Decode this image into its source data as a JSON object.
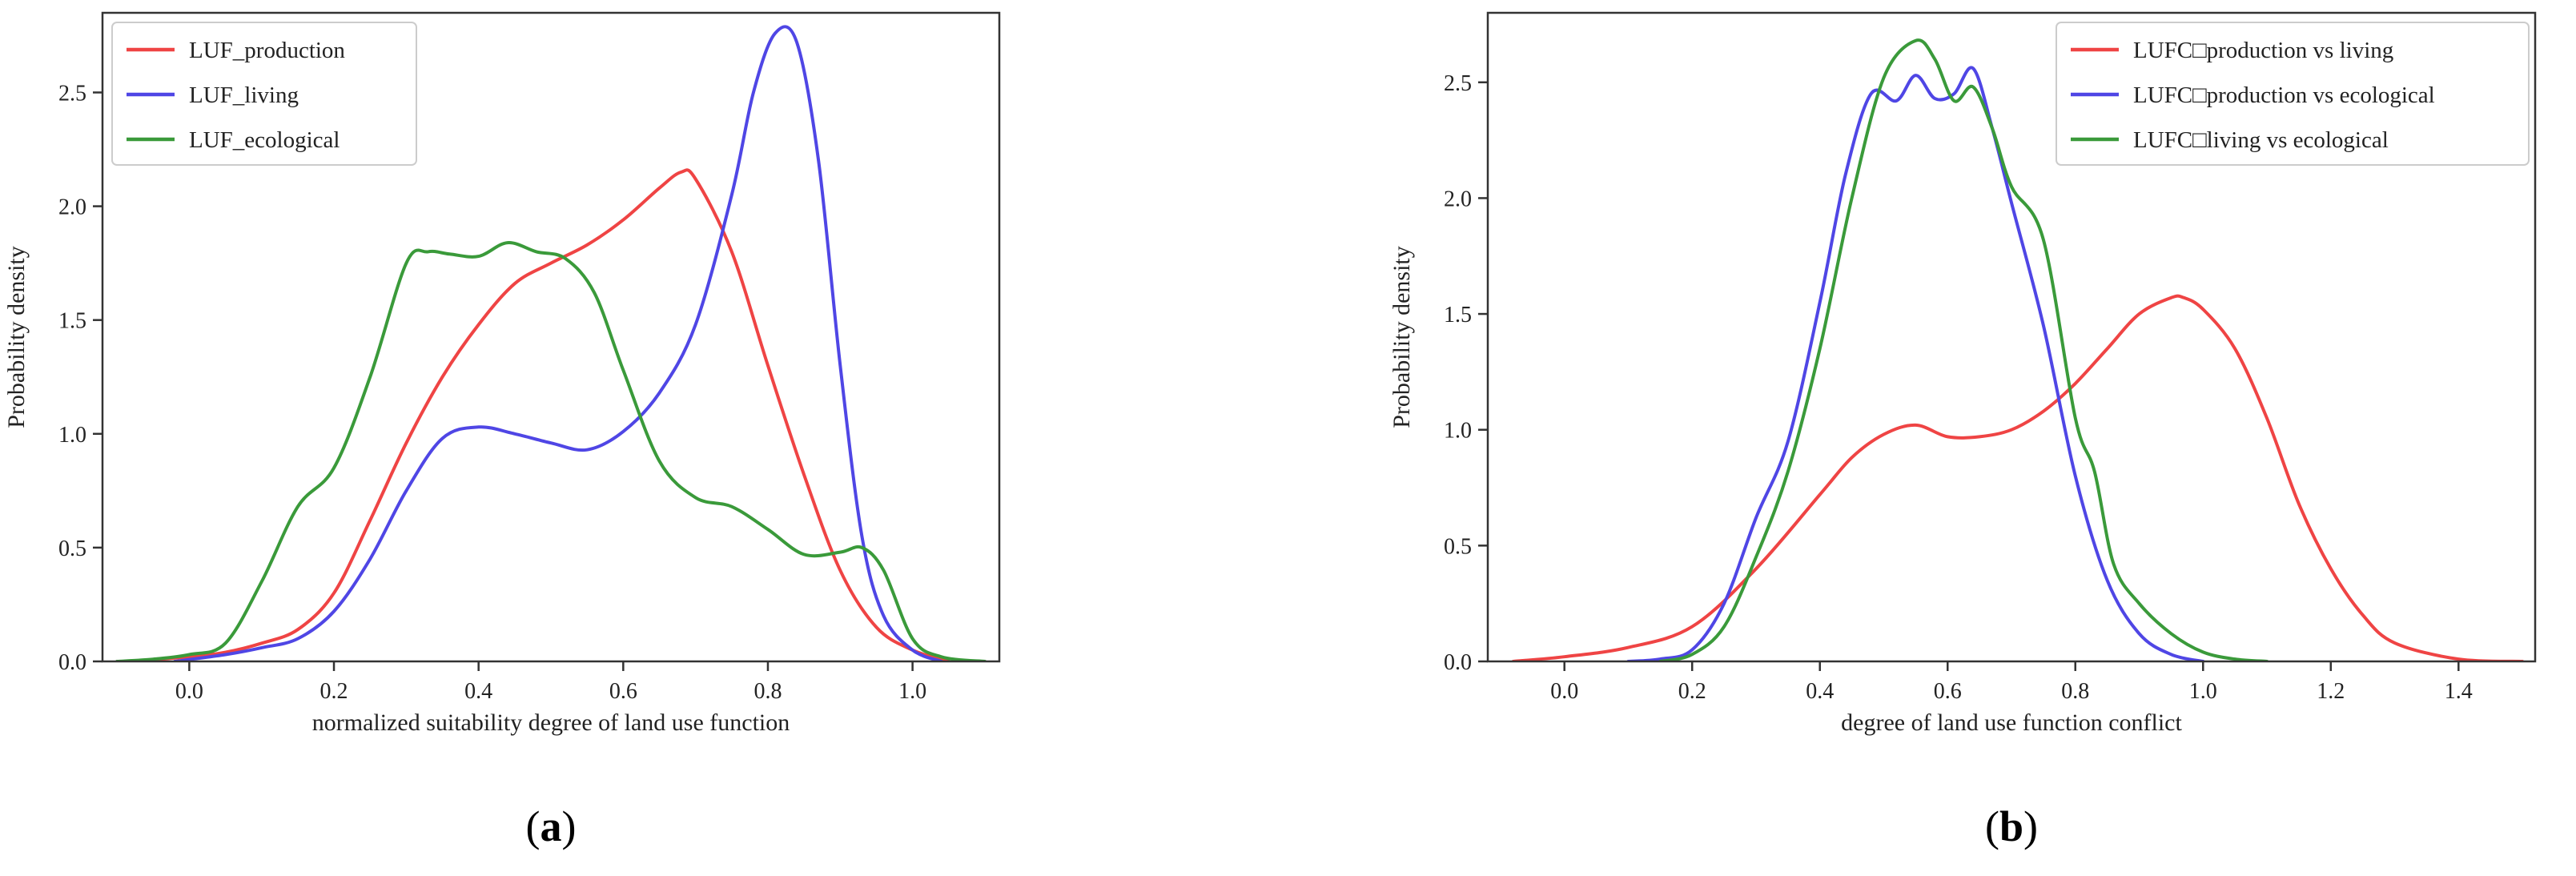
{
  "chart_data": [
    {
      "type": "line",
      "panel_label_open": "(",
      "panel_label_letter": "a",
      "panel_label_close": ")",
      "xlabel": "normalized  suitability degree of land use function",
      "ylabel": "Probability density",
      "xlim": [
        -0.12,
        1.12
      ],
      "ylim": [
        0,
        2.85
      ],
      "xticks": [
        0.0,
        0.2,
        0.4,
        0.6,
        0.8,
        1.0
      ],
      "xtick_labels": [
        "0.0",
        "0.2",
        "0.4",
        "0.6",
        "0.8",
        "1.0"
      ],
      "yticks": [
        0.0,
        0.5,
        1.0,
        1.5,
        2.0,
        2.5
      ],
      "ytick_labels": [
        "0.0",
        "0.5",
        "1.0",
        "1.5",
        "2.0",
        "2.5"
      ],
      "legend_position": "top-left",
      "series": [
        {
          "name": "LUF_production",
          "color": "#ef4444",
          "x": [
            -0.08,
            0.0,
            0.05,
            0.1,
            0.15,
            0.2,
            0.25,
            0.3,
            0.35,
            0.4,
            0.45,
            0.5,
            0.55,
            0.6,
            0.65,
            0.68,
            0.7,
            0.75,
            0.8,
            0.85,
            0.9,
            0.95,
            1.0,
            1.05
          ],
          "y": [
            0.0,
            0.02,
            0.04,
            0.08,
            0.14,
            0.3,
            0.62,
            0.96,
            1.25,
            1.48,
            1.66,
            1.75,
            1.83,
            1.94,
            2.08,
            2.15,
            2.12,
            1.8,
            1.3,
            0.82,
            0.4,
            0.15,
            0.05,
            0.0
          ]
        },
        {
          "name": "LUF_living",
          "color": "#4f46e5",
          "x": [
            -0.02,
            0.05,
            0.1,
            0.15,
            0.2,
            0.25,
            0.3,
            0.35,
            0.4,
            0.45,
            0.5,
            0.55,
            0.6,
            0.65,
            0.7,
            0.75,
            0.78,
            0.81,
            0.84,
            0.87,
            0.9,
            0.93,
            0.96,
            1.0,
            1.04
          ],
          "y": [
            0.0,
            0.03,
            0.06,
            0.1,
            0.22,
            0.45,
            0.75,
            0.98,
            1.03,
            1.0,
            0.96,
            0.93,
            1.01,
            1.18,
            1.48,
            2.05,
            2.5,
            2.76,
            2.72,
            2.2,
            1.3,
            0.55,
            0.2,
            0.05,
            0.0
          ]
        },
        {
          "name": "LUF_ecological",
          "color": "#3a9a3a",
          "x": [
            -0.1,
            -0.05,
            0.0,
            0.05,
            0.1,
            0.15,
            0.2,
            0.25,
            0.3,
            0.33,
            0.36,
            0.4,
            0.44,
            0.48,
            0.52,
            0.56,
            0.6,
            0.65,
            0.7,
            0.75,
            0.8,
            0.85,
            0.9,
            0.93,
            0.96,
            1.0,
            1.04,
            1.1
          ],
          "y": [
            0.0,
            0.01,
            0.03,
            0.08,
            0.35,
            0.68,
            0.85,
            1.25,
            1.75,
            1.8,
            1.79,
            1.78,
            1.84,
            1.8,
            1.77,
            1.62,
            1.28,
            0.88,
            0.72,
            0.68,
            0.58,
            0.47,
            0.48,
            0.5,
            0.4,
            0.1,
            0.02,
            0.0
          ]
        }
      ]
    },
    {
      "type": "line",
      "panel_label_open": "(",
      "panel_label_letter": "b",
      "panel_label_close": ")",
      "xlabel": "degree of land use function conflict",
      "ylabel": "Probability density",
      "xlim": [
        -0.12,
        1.52
      ],
      "ylim": [
        0,
        2.8
      ],
      "xticks": [
        0.0,
        0.2,
        0.4,
        0.6,
        0.8,
        1.0,
        1.2,
        1.4
      ],
      "xtick_labels": [
        "0.0",
        "0.2",
        "0.4",
        "0.6",
        "0.8",
        "1.0",
        "1.2",
        "1.4"
      ],
      "yticks": [
        0.0,
        0.5,
        1.0,
        1.5,
        2.0,
        2.5
      ],
      "ytick_labels": [
        "0.0",
        "0.5",
        "1.0",
        "1.5",
        "2.0",
        "2.5"
      ],
      "legend_position": "top-right",
      "series": [
        {
          "name": "LUFC□production vs living",
          "color": "#ef4444",
          "x": [
            -0.08,
            0.0,
            0.1,
            0.2,
            0.3,
            0.4,
            0.45,
            0.5,
            0.55,
            0.6,
            0.65,
            0.7,
            0.75,
            0.8,
            0.85,
            0.9,
            0.95,
            0.97,
            1.0,
            1.05,
            1.1,
            1.15,
            1.2,
            1.25,
            1.3,
            1.4,
            1.5
          ],
          "y": [
            0.0,
            0.02,
            0.06,
            0.15,
            0.4,
            0.72,
            0.88,
            0.98,
            1.02,
            0.97,
            0.97,
            1.0,
            1.08,
            1.2,
            1.35,
            1.5,
            1.57,
            1.57,
            1.52,
            1.35,
            1.05,
            0.68,
            0.4,
            0.2,
            0.08,
            0.01,
            0.0
          ]
        },
        {
          "name": "LUFC□production vs ecological",
          "color": "#4f46e5",
          "x": [
            0.1,
            0.15,
            0.2,
            0.25,
            0.3,
            0.35,
            0.4,
            0.44,
            0.48,
            0.52,
            0.55,
            0.58,
            0.61,
            0.64,
            0.67,
            0.7,
            0.75,
            0.8,
            0.85,
            0.9,
            0.95,
            1.0
          ],
          "y": [
            0.0,
            0.01,
            0.05,
            0.25,
            0.62,
            0.95,
            1.55,
            2.1,
            2.45,
            2.42,
            2.53,
            2.43,
            2.45,
            2.56,
            2.3,
            1.98,
            1.45,
            0.8,
            0.35,
            0.12,
            0.03,
            0.0
          ]
        },
        {
          "name": "LUFC□living vs ecological",
          "color": "#3a9a3a",
          "x": [
            0.15,
            0.2,
            0.25,
            0.3,
            0.35,
            0.4,
            0.45,
            0.5,
            0.55,
            0.58,
            0.61,
            0.64,
            0.67,
            0.7,
            0.75,
            0.8,
            0.83,
            0.86,
            0.9,
            0.95,
            1.0,
            1.05,
            1.1
          ],
          "y": [
            0.0,
            0.03,
            0.15,
            0.45,
            0.82,
            1.35,
            2.0,
            2.52,
            2.68,
            2.6,
            2.42,
            2.48,
            2.3,
            2.05,
            1.82,
            1.05,
            0.82,
            0.42,
            0.25,
            0.12,
            0.04,
            0.01,
            0.0
          ]
        }
      ]
    }
  ]
}
